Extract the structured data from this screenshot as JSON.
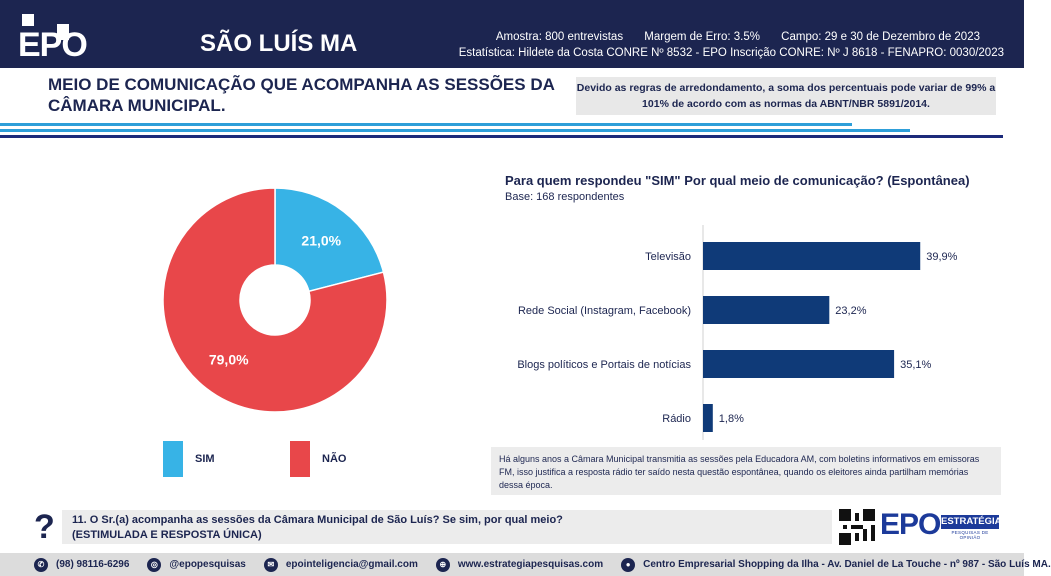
{
  "header": {
    "logo": "EPO",
    "city": "SÃO LUÍS MA",
    "sample": "Amostra: 800 entrevistas",
    "margin": "Margem de Erro: 3.5%",
    "field": "Campo: 29 e 30 de Dezembro de 2023",
    "registry": "Estatística: Hildete da Costa CONRE Nº 8532  - EPO Inscrição CONRE: Nº J 8618 - FENAPRO: 0030/2023"
  },
  "title": "MEIO DE COMUNICAÇÃO QUE ACOMPANHA AS SESSÕES DA CÂMARA MUNICIPAL.",
  "note": "Devido as regras de arredondamento, a soma dos percentuais pode variar de 99% a 101% de acordo com as normas da ABNT/NBR 5891/2014.",
  "colors": {
    "navy": "#1c2550",
    "sim": "#37b3e6",
    "nao": "#e8474a",
    "bar": "#0f3a78"
  },
  "chart_data": [
    {
      "type": "pie",
      "slices": [
        {
          "name": "SIM",
          "value": 21.0,
          "label": "21,0%",
          "color": "#37b3e6"
        },
        {
          "name": "NÃO",
          "value": 79.0,
          "label": "79,0%",
          "color": "#e8474a"
        }
      ],
      "legend": [
        "SIM",
        "NÃO"
      ],
      "legend_position": "bottom"
    },
    {
      "type": "bar",
      "orientation": "horizontal",
      "title": "Para quem respondeu \"SIM\" Por qual meio de comunicação? (Espontânea)",
      "subtitle": "Base: 168 respondentes",
      "categories": [
        "Televisão",
        "Rede Social (Instagram, Facebook)",
        "Blogs políticos e Portais de notícias",
        "Rádio"
      ],
      "values": [
        39.9,
        23.2,
        35.1,
        1.8
      ],
      "labels": [
        "39,9%",
        "23,2%",
        "35,1%",
        "1,8%"
      ],
      "xlim": [
        0,
        45
      ]
    }
  ],
  "info": "Há alguns anos a Câmara Municipal transmitia as sessões pela Educadora AM, com boletins informativos em emissoras FM,  isso justifica a resposta rádio ter saído nesta questão espontânea, quando os eleitores ainda partilham memórias dessa época.",
  "question": {
    "mark": "?",
    "text": "11. O Sr.(a) acompanha as sessões da Câmara Municipal de São Luís? Se sim, por qual meio?",
    "type": "(ESTIMULADA E RESPOSTA ÚNICA)"
  },
  "brand": {
    "name": "EPO",
    "sub": "ESTRATÉGIA",
    "tag": "PESQUISAS DE OPINIÃO"
  },
  "footer": [
    {
      "icon": "whatsapp-icon",
      "glyph": "✆",
      "text": "(98) 98116-6296"
    },
    {
      "icon": "instagram-icon",
      "glyph": "◎",
      "text": "@epopesquisas"
    },
    {
      "icon": "email-icon",
      "glyph": "✉",
      "text": "epointeligencia@gmail.com"
    },
    {
      "icon": "globe-icon",
      "glyph": "⊕",
      "text": "www.estrategiapesquisas.com"
    },
    {
      "icon": "location-icon",
      "glyph": "●",
      "text": "Centro Empresarial Shopping da Ilha - Av. Daniel de La Touche - nº 987 - São Luís MA."
    }
  ]
}
